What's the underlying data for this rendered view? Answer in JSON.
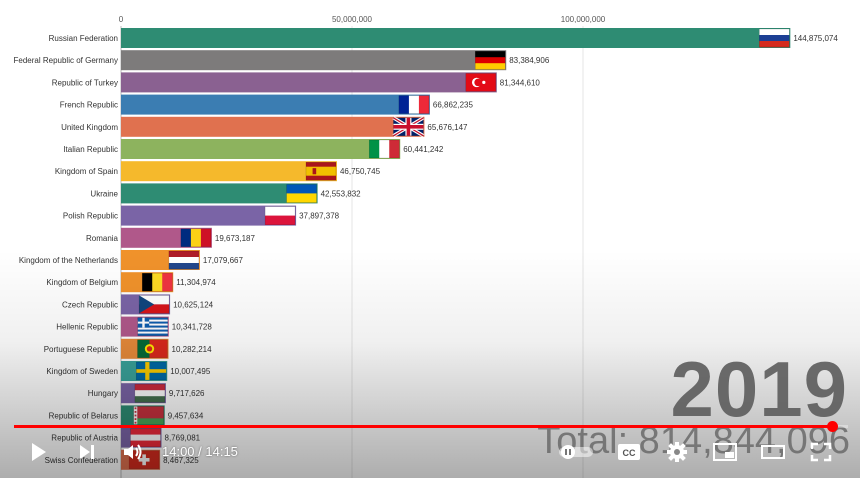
{
  "chart_data": {
    "type": "bar",
    "orientation": "horizontal",
    "title": "",
    "xlim": [
      0,
      158000000
    ],
    "ticks": [
      0,
      50000000,
      100000000
    ],
    "tick_labels": [
      "0",
      "50,000,000",
      "100,000,000"
    ],
    "year": "2019",
    "total_label": "Total: 814,844,096",
    "bars": [
      {
        "name": "Russian Federation",
        "value": 144875074,
        "label": "144,875,074",
        "color": "#2e8c73",
        "flag": "russia"
      },
      {
        "name": "Federal Republic of Germany",
        "value": 83384906,
        "label": "83,384,906",
        "color": "#7d7b7b",
        "flag": "germany"
      },
      {
        "name": "Republic of Turkey",
        "value": 81344610,
        "label": "81,344,610",
        "color": "#8a6191",
        "flag": "turkey"
      },
      {
        "name": "French Republic",
        "value": 66862235,
        "label": "66,862,235",
        "color": "#3b7db2",
        "flag": "france"
      },
      {
        "name": "United Kingdom",
        "value": 65676147,
        "label": "65,676,147",
        "color": "#e0714f",
        "flag": "uk"
      },
      {
        "name": "Italian Republic",
        "value": 60441242,
        "label": "60,441,242",
        "color": "#8db35e",
        "flag": "italy"
      },
      {
        "name": "Kingdom of Spain",
        "value": 46750745,
        "label": "46,750,745",
        "color": "#f5b92c",
        "flag": "spain"
      },
      {
        "name": "Ukraine",
        "value": 42553832,
        "label": "42,553,832",
        "color": "#2e8c73",
        "flag": "ukraine"
      },
      {
        "name": "Polish Republic",
        "value": 37897378,
        "label": "37,897,378",
        "color": "#7a64a6",
        "flag": "poland"
      },
      {
        "name": "Romania",
        "value": 19673187,
        "label": "19,673,187",
        "color": "#b0588a",
        "flag": "romania"
      },
      {
        "name": "Kingdom of the Netherlands",
        "value": 17079667,
        "label": "17,079,667",
        "color": "#f0922b",
        "flag": "netherlands"
      },
      {
        "name": "Kingdom of Belgium",
        "value": 11304974,
        "label": "11,304,974",
        "color": "#f0922b",
        "flag": "belgium"
      },
      {
        "name": "Czech Republic",
        "value": 10625124,
        "label": "10,625,124",
        "color": "#7a64a6",
        "flag": "czech"
      },
      {
        "name": "Hellenic Republic",
        "value": 10341728,
        "label": "10,341,728",
        "color": "#b0588a",
        "flag": "greece"
      },
      {
        "name": "Portuguese Republic",
        "value": 10282214,
        "label": "10,282,214",
        "color": "#e68a3a",
        "flag": "portugal"
      },
      {
        "name": "Kingdom of Sweden",
        "value": 10007495,
        "label": "10,007,495",
        "color": "#3aa39b",
        "flag": "sweden"
      },
      {
        "name": "Hungary",
        "value": 9717626,
        "label": "9,717,626",
        "color": "#7a64a6",
        "flag": "hungary"
      },
      {
        "name": "Republic of Belarus",
        "value": 9457634,
        "label": "9,457,634",
        "color": "#2e8c73",
        "flag": "belarus"
      },
      {
        "name": "Republic of Austria",
        "value": 8769081,
        "label": "8,769,081",
        "color": "#7a64a6",
        "flag": "austria"
      },
      {
        "name": "Swiss Confederation",
        "value": 8467325,
        "label": "8,467,325",
        "color": "#e0714f",
        "flag": "switzerland"
      }
    ]
  },
  "player": {
    "time_display": "14:00 / 14:15",
    "progress": 0.982,
    "accent_color": "#ff0000",
    "controls": [
      {
        "key": "play",
        "icon": "play-icon"
      },
      {
        "key": "next",
        "icon": "next-icon"
      },
      {
        "key": "volume",
        "icon": "volume-icon"
      },
      {
        "key": "autoplay",
        "icon": "autoplay-toggle-icon"
      },
      {
        "key": "captions",
        "icon": "captions-icon"
      },
      {
        "key": "settings",
        "icon": "gear-icon"
      },
      {
        "key": "miniplayer",
        "icon": "miniplayer-icon"
      },
      {
        "key": "theater",
        "icon": "theater-mode-icon"
      },
      {
        "key": "fullscreen",
        "icon": "fullscreen-icon"
      }
    ]
  }
}
